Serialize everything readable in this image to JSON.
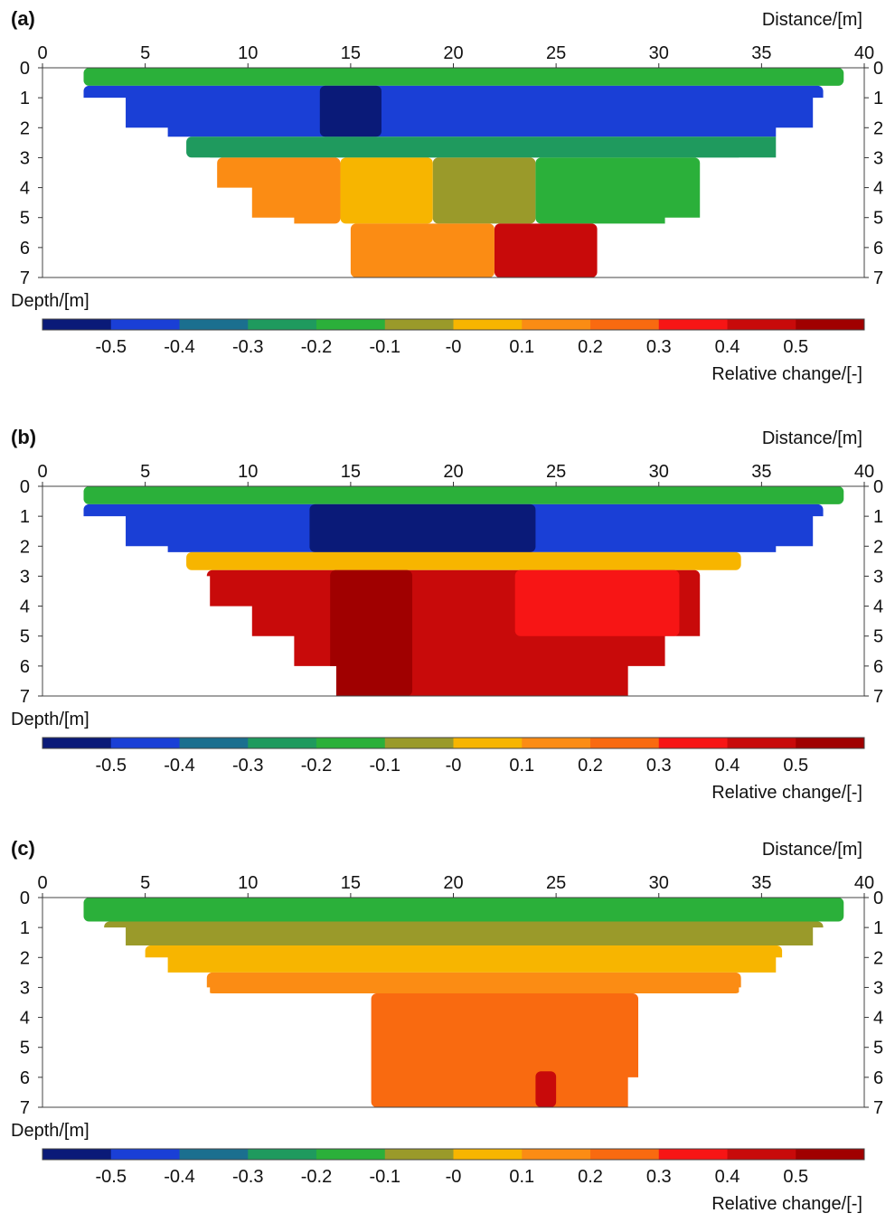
{
  "panels": [
    {
      "label": "(a)",
      "xaxis_title": "Distance/[m]",
      "yaxis_title": "Depth/[m]",
      "colorbar_title": "Relative change/[-]"
    },
    {
      "label": "(b)",
      "xaxis_title": "Distance/[m]",
      "yaxis_title": "Depth/[m]",
      "colorbar_title": "Relative change/[-]"
    },
    {
      "label": "(c)",
      "xaxis_title": "Distance/[m]",
      "yaxis_title": "Depth/[m]",
      "colorbar_title": "Relative change/[-]"
    }
  ],
  "colorscale": {
    "colors": [
      "#0a1a78",
      "#1a3fd6",
      "#1b6f8f",
      "#1f9a5e",
      "#2bb03a",
      "#9a9a2a",
      "#f7b500",
      "#fb8c14",
      "#f96a10",
      "#f71515",
      "#c80a0a",
      "#a00000"
    ],
    "tick_labels": [
      "-0.5",
      "-0.4",
      "-0.3",
      "-0.2",
      "-0.1",
      "-0",
      "0.1",
      "0.2",
      "0.3",
      "0.4",
      "0.5"
    ]
  },
  "chart_data": [
    {
      "type": "heatmap",
      "panel": "(a)",
      "xlabel": "Distance/[m]",
      "ylabel": "Depth/[m]",
      "colorbar_label": "Relative change/[-]",
      "xlim": [
        0,
        40
      ],
      "ylim": [
        7,
        0
      ],
      "xticks": [
        0,
        5,
        10,
        15,
        20,
        25,
        30,
        35,
        40
      ],
      "yticks": [
        0,
        1,
        2,
        3,
        4,
        5,
        6,
        7
      ],
      "zones": [
        {
          "depth": [
            0.0,
            0.6
          ],
          "x": [
            2,
            39
          ],
          "value": -0.15
        },
        {
          "depth": [
            0.6,
            2.3
          ],
          "x": [
            2,
            38
          ],
          "value": -0.45
        },
        {
          "depth": [
            0.6,
            2.3
          ],
          "x": [
            13.5,
            16.5
          ],
          "value": -0.55
        },
        {
          "depth": [
            2.3,
            3.0
          ],
          "x": [
            7,
            36
          ],
          "value": -0.25
        },
        {
          "depth": [
            3.0,
            5.2
          ],
          "x": [
            8.5,
            14.5
          ],
          "value": 0.15
        },
        {
          "depth": [
            3.0,
            5.2
          ],
          "x": [
            14.5,
            19
          ],
          "value": 0.05
        },
        {
          "depth": [
            3.0,
            5.2
          ],
          "x": [
            19,
            24
          ],
          "value": -0.05
        },
        {
          "depth": [
            3.0,
            5.2
          ],
          "x": [
            24,
            32
          ],
          "value": -0.15
        },
        {
          "depth": [
            5.2,
            7.0
          ],
          "x": [
            15,
            22
          ],
          "value": 0.15
        },
        {
          "depth": [
            5.2,
            7.0
          ],
          "x": [
            22,
            27
          ],
          "value": 0.45
        }
      ]
    },
    {
      "type": "heatmap",
      "panel": "(b)",
      "xlabel": "Distance/[m]",
      "ylabel": "Depth/[m]",
      "colorbar_label": "Relative change/[-]",
      "xlim": [
        0,
        40
      ],
      "ylim": [
        7,
        0
      ],
      "xticks": [
        0,
        5,
        10,
        15,
        20,
        25,
        30,
        35,
        40
      ],
      "yticks": [
        0,
        1,
        2,
        3,
        4,
        5,
        6,
        7
      ],
      "zones": [
        {
          "depth": [
            0.0,
            0.6
          ],
          "x": [
            2,
            39
          ],
          "value": -0.15
        },
        {
          "depth": [
            0.6,
            2.2
          ],
          "x": [
            2,
            38
          ],
          "value": -0.45
        },
        {
          "depth": [
            0.6,
            2.2
          ],
          "x": [
            13,
            24
          ],
          "value": -0.55
        },
        {
          "depth": [
            2.2,
            2.8
          ],
          "x": [
            7,
            34
          ],
          "value": 0.05
        },
        {
          "depth": [
            2.8,
            7.0
          ],
          "x": [
            8,
            32
          ],
          "value": 0.45
        },
        {
          "depth": [
            2.8,
            7.0
          ],
          "x": [
            14,
            18
          ],
          "value": 0.55
        },
        {
          "depth": [
            2.8,
            5.0
          ],
          "x": [
            23,
            31
          ],
          "value": 0.35
        }
      ]
    },
    {
      "type": "heatmap",
      "panel": "(c)",
      "xlabel": "Distance/[m]",
      "ylabel": "Depth/[m]",
      "colorbar_label": "Relative change/[-]",
      "xlim": [
        0,
        40
      ],
      "ylim": [
        7,
        0
      ],
      "xticks": [
        0,
        5,
        10,
        15,
        20,
        25,
        30,
        35,
        40
      ],
      "yticks": [
        0,
        1,
        2,
        3,
        4,
        5,
        6,
        7
      ],
      "zones": [
        {
          "depth": [
            0.0,
            0.8
          ],
          "x": [
            2,
            39
          ],
          "value": -0.15
        },
        {
          "depth": [
            0.8,
            1.6
          ],
          "x": [
            3,
            38
          ],
          "value": -0.05
        },
        {
          "depth": [
            1.6,
            2.5
          ],
          "x": [
            5,
            36
          ],
          "value": 0.05
        },
        {
          "depth": [
            2.5,
            3.2
          ],
          "x": [
            8,
            34
          ],
          "value": 0.15
        },
        {
          "depth": [
            3.2,
            7.0
          ],
          "x": [
            16,
            29
          ],
          "value": 0.25
        },
        {
          "depth": [
            5.8,
            7.0
          ],
          "x": [
            24,
            25
          ],
          "value": 0.45
        }
      ]
    }
  ]
}
